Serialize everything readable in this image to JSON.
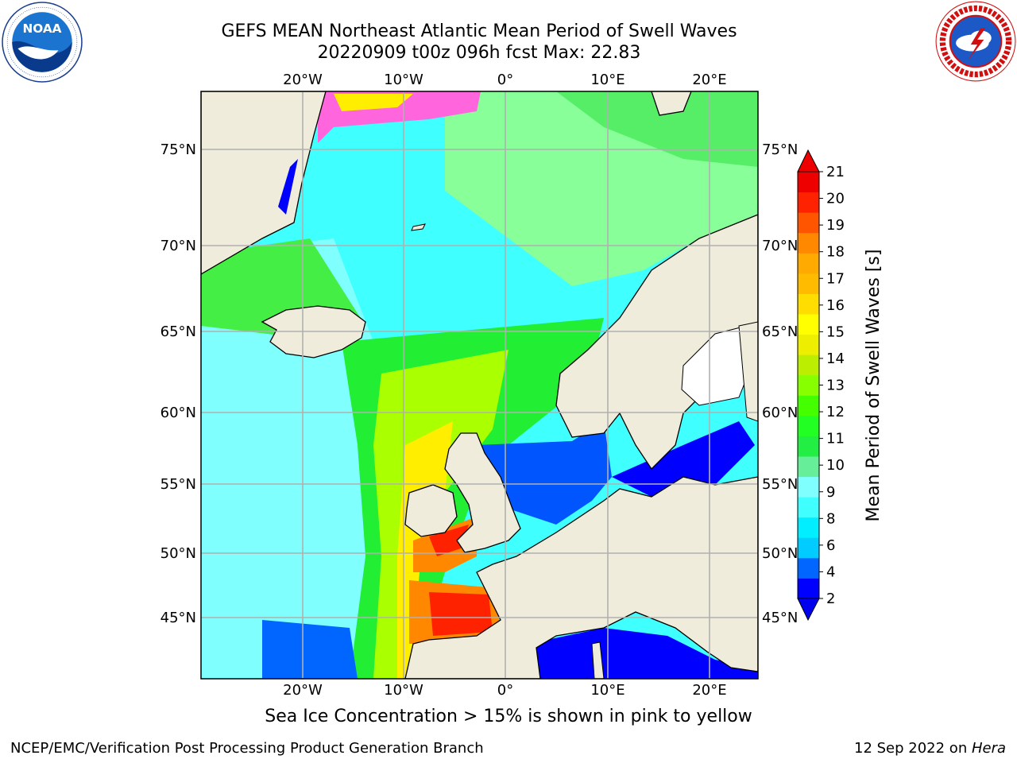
{
  "header": {
    "title_line1": "GEFS MEAN Northeast Atlantic Mean Period of Swell Waves",
    "title_line2": "20220909 t00z 096h fcst   Max: 22.83"
  },
  "logos": {
    "left": {
      "name": "NOAA",
      "ring_text": "NATIONAL OCEANIC AND ATMOSPHERIC ADMINISTRATION · U.S. DEPARTMENT OF COMMERCE"
    },
    "right": {
      "name": "NATIONAL WEATHER SERVICE"
    }
  },
  "map": {
    "lon_ticks": [
      "20°W",
      "10°W",
      "0°",
      "10°E",
      "20°E"
    ],
    "lat_ticks": [
      "75°N",
      "70°N",
      "65°N",
      "60°N",
      "55°N",
      "50°N",
      "45°N"
    ],
    "land_color": "#efecdc",
    "grid_color": "#b0b0b0"
  },
  "colorbar": {
    "label": "Mean Period of Swell Waves [s]",
    "ticks": [
      "21",
      "20",
      "19",
      "18",
      "17",
      "16",
      "15",
      "14",
      "13",
      "12",
      "11",
      "10",
      "9",
      "8",
      "6",
      "4",
      "2"
    ],
    "colors": [
      "#0000ff",
      "#0066ff",
      "#00ccff",
      "#00eeff",
      "#40ffff",
      "#80ffff",
      "#66ee99",
      "#22ee44",
      "#22ff22",
      "#44ff00",
      "#88ff00",
      "#bbee00",
      "#eeee00",
      "#ffff00",
      "#ffdd00",
      "#ffbb00",
      "#ffaa00",
      "#ff8800",
      "#ff5500",
      "#ff2200",
      "#ee0000"
    ],
    "under_color": "#0000ee",
    "over_color": "#ee0000"
  },
  "footer": {
    "caption": "Sea Ice Concentration > 15% is shown in pink to yellow",
    "credit": "NCEP/EMC/Verification Post Processing Product Generation Branch",
    "date_prefix": "12 Sep 2022 on ",
    "date_host": "Hera"
  }
}
